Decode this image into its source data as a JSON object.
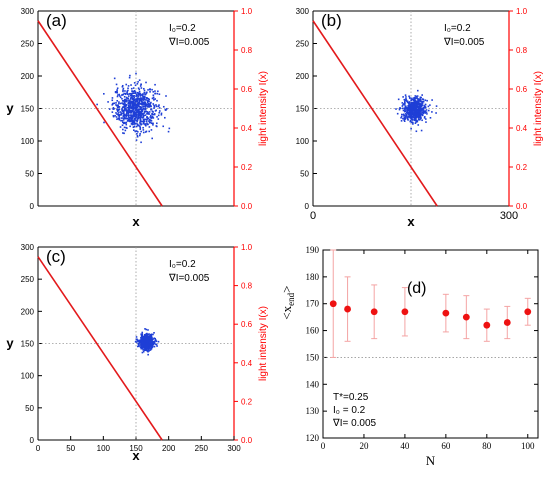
{
  "colors": {
    "axis": "#000000",
    "right_axis": "#ff0000",
    "line": "#e31a1c",
    "scatter": "#1f3fd6",
    "marker": "#ee1111",
    "errorbar": "#f4a4a4",
    "guide": "#999999"
  },
  "chart_data": [
    {
      "type": "scatter",
      "panel_label": "(a)",
      "annotations": [
        "I₀=0.2",
        "∇I=0.005"
      ],
      "xlabel": "x",
      "ylabel": "y",
      "y2label": "light intensity I(x)",
      "xlim": [
        0,
        300
      ],
      "ylim": [
        0,
        300
      ],
      "y2lim": [
        0.0,
        1.0
      ],
      "yticks": [
        0,
        50,
        100,
        150,
        200,
        250,
        300
      ],
      "y2ticks": [
        0.0,
        0.2,
        0.4,
        0.6,
        0.8,
        1.0
      ],
      "y2ticklabels": [
        "0.0",
        "0.2",
        "0.4",
        "0.6",
        "0.8",
        "1.0"
      ],
      "xticklabels": [],
      "guides": {
        "x": 150,
        "y": 150
      },
      "line": {
        "x": [
          0,
          190
        ],
        "y2": [
          0.95,
          0.0
        ]
      },
      "cloud": {
        "center": [
          150,
          150
        ],
        "spread": [
          17,
          17
        ],
        "count": 800
      }
    },
    {
      "type": "scatter",
      "panel_label": "(b)",
      "annotations": [
        "I₀=0.2",
        "∇I=0.005"
      ],
      "xlabel": "x",
      "ylabel": "",
      "y2label": "light intensity I(x)",
      "xlim": [
        0,
        300
      ],
      "ylim": [
        0,
        300
      ],
      "y2lim": [
        0.0,
        1.0
      ],
      "yticks": [
        0,
        50,
        100,
        150,
        200,
        250,
        300
      ],
      "y2ticks": [
        0.0,
        0.2,
        0.4,
        0.6,
        0.8,
        1.0
      ],
      "y2ticklabels": [
        "0.0",
        "0.2",
        "0.4",
        "0.6",
        "0.8",
        "1.0"
      ],
      "xticklabels": [
        "0",
        "300"
      ],
      "guides": {
        "x": 150,
        "y": 150
      },
      "line": {
        "x": [
          0,
          190
        ],
        "y2": [
          0.95,
          0.0
        ]
      },
      "cloud": {
        "center": [
          155,
          148
        ],
        "spread": [
          9,
          9
        ],
        "count": 650
      }
    },
    {
      "type": "scatter",
      "panel_label": "(c)",
      "annotations": [
        "I₀=0.2",
        "∇I=0.005"
      ],
      "xlabel": "x",
      "ylabel": "y",
      "y2label": "light intensity I(x)",
      "xlim": [
        0,
        300
      ],
      "ylim": [
        0,
        300
      ],
      "y2lim": [
        0.0,
        1.0
      ],
      "xticks": [
        0,
        50,
        100,
        150,
        200,
        250,
        300
      ],
      "xticklabels": [
        "0",
        "50",
        "100",
        "150",
        "200",
        "250",
        "300"
      ],
      "yticks": [
        0,
        50,
        100,
        150,
        200,
        250,
        300
      ],
      "y2ticks": [
        0.0,
        0.2,
        0.4,
        0.6,
        0.8,
        1.0
      ],
      "y2ticklabels": [
        "0.0",
        "0.2",
        "0.4",
        "0.6",
        "0.8",
        "1.0"
      ],
      "guides": {
        "x": 150,
        "y": 150
      },
      "line": {
        "x": [
          0,
          190
        ],
        "y2": [
          0.95,
          0.0
        ]
      },
      "cloud": {
        "center": [
          167,
          152
        ],
        "spread": [
          6,
          6
        ],
        "count": 500
      }
    },
    {
      "type": "scatter",
      "panel_label": "(d)",
      "annotations": [
        "T*=0.25",
        "I₀ = 0.2",
        "∇I= 0.005"
      ],
      "xlabel": "N",
      "ylabel": "<x_end>",
      "xlim": [
        0,
        105
      ],
      "ylim": [
        120,
        190
      ],
      "xticks": [
        0,
        20,
        40,
        60,
        80,
        100
      ],
      "yticks": [
        120,
        130,
        140,
        150,
        160,
        170,
        180,
        190
      ],
      "hline": 150,
      "series": [
        {
          "x": [
            5,
            12,
            25,
            40,
            60,
            70,
            80,
            90,
            100
          ],
          "y": [
            170,
            168,
            167,
            167,
            166.5,
            165,
            162,
            163,
            167
          ],
          "err": [
            20,
            12,
            10,
            9,
            7,
            8,
            6,
            6,
            5
          ]
        }
      ]
    }
  ]
}
